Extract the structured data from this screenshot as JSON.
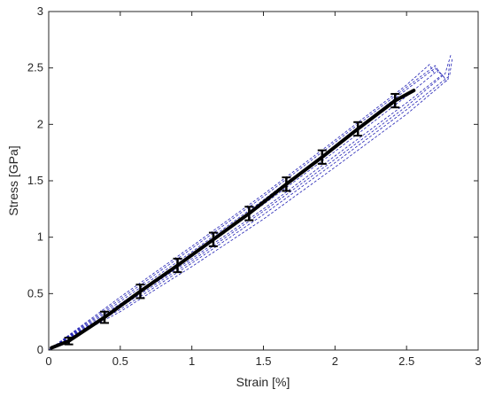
{
  "chart_data": {
    "type": "line",
    "title": "",
    "xlabel": "Strain [%]",
    "ylabel": "Stress [GPa]",
    "xlim": [
      0,
      3
    ],
    "ylim": [
      0,
      3
    ],
    "xticks": [
      "0",
      "0.5",
      "1",
      "1.5",
      "2",
      "2.5",
      "3"
    ],
    "yticks": [
      "0",
      "0.5",
      "1",
      "1.5",
      "2",
      "2.5",
      "3"
    ],
    "grid": false,
    "legend": "none",
    "colors": {
      "mean": "#000000",
      "specimens": "#1f1fb4",
      "errorbar": "#000000",
      "axis": "#262626"
    },
    "mean": {
      "x": [
        0.02,
        0.14,
        0.39,
        0.64,
        0.9,
        1.15,
        1.4,
        1.66,
        1.91,
        2.16,
        2.42,
        2.55
      ],
      "y": [
        0.02,
        0.08,
        0.29,
        0.52,
        0.75,
        0.98,
        1.21,
        1.47,
        1.71,
        1.96,
        2.21,
        2.3
      ]
    },
    "errorbars": {
      "x": [
        0.14,
        0.39,
        0.64,
        0.9,
        1.15,
        1.4,
        1.66,
        1.91,
        2.16,
        2.42
      ],
      "y": [
        0.08,
        0.29,
        0.52,
        0.75,
        0.98,
        1.21,
        1.47,
        1.71,
        1.96,
        2.21
      ],
      "err": [
        0.03,
        0.05,
        0.06,
        0.06,
        0.06,
        0.06,
        0.06,
        0.06,
        0.06,
        0.06
      ]
    },
    "specimens": [
      {
        "x": [
          0,
          0.5,
          1.0,
          1.5,
          2.0,
          2.5,
          2.7,
          2.72
        ],
        "y": [
          0,
          0.43,
          0.87,
          1.33,
          1.81,
          2.31,
          2.5,
          2.46
        ]
      },
      {
        "x": [
          0,
          0.5,
          1.0,
          1.5,
          2.0,
          2.5,
          2.8,
          2.82
        ],
        "y": [
          0,
          0.36,
          0.77,
          1.2,
          1.66,
          2.13,
          2.43,
          2.59
        ]
      },
      {
        "x": [
          0,
          0.5,
          1.0,
          1.5,
          2.0,
          2.5,
          2.66,
          2.69
        ],
        "y": [
          0,
          0.47,
          0.92,
          1.38,
          1.86,
          2.35,
          2.53,
          2.46
        ]
      },
      {
        "x": [
          0,
          0.5,
          1.0,
          1.5,
          2.0,
          2.5,
          2.75,
          2.78
        ],
        "y": [
          0,
          0.39,
          0.81,
          1.25,
          1.72,
          2.19,
          2.44,
          2.38
        ]
      },
      {
        "x": [
          0,
          0.5,
          1.0,
          1.5,
          2.0,
          2.5,
          2.72,
          2.76
        ],
        "y": [
          0,
          0.41,
          0.84,
          1.29,
          1.76,
          2.25,
          2.48,
          2.42
        ]
      },
      {
        "x": [
          0,
          0.5,
          1.0,
          1.5,
          2.0,
          2.5,
          2.79,
          2.8
        ],
        "y": [
          0,
          0.34,
          0.74,
          1.16,
          1.62,
          2.09,
          2.4,
          2.55
        ]
      },
      {
        "x": [
          0,
          0.5,
          1.0,
          1.5,
          2.0,
          2.5,
          2.7,
          2.74
        ],
        "y": [
          0,
          0.45,
          0.9,
          1.36,
          1.84,
          2.33,
          2.52,
          2.44
        ]
      },
      {
        "x": [
          0,
          0.5,
          1.0,
          1.5,
          2.0,
          2.5,
          2.77,
          2.81
        ],
        "y": [
          0,
          0.38,
          0.79,
          1.23,
          1.69,
          2.16,
          2.45,
          2.62
        ]
      }
    ]
  }
}
